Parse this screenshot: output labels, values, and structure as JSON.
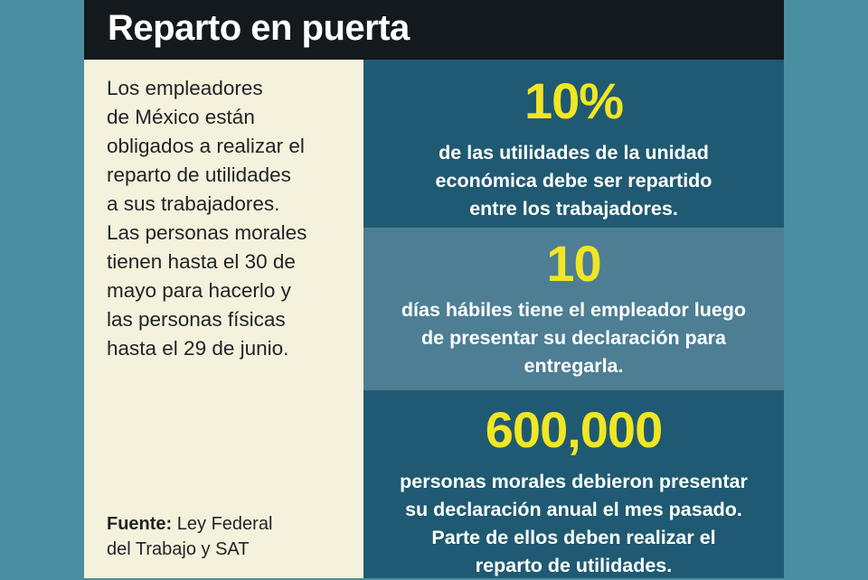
{
  "header": {
    "title": "Reparto en puerta"
  },
  "intro": {
    "lines": [
      "Los empleadores",
      "de México están",
      "obligados a realizar el",
      "reparto de utilidades",
      "a sus trabajadores.",
      "Las personas morales",
      "tienen hasta el 30 de",
      "mayo para hacerlo y",
      "las personas físicas",
      "hasta el 29 de junio."
    ]
  },
  "source": {
    "label": "Fuente:",
    "line1": " Ley Federal",
    "line2": "del Trabajo y SAT"
  },
  "stats": [
    {
      "value": "10%",
      "lines": [
        "de las utilidades de la unidad",
        "económica debe ser repartido",
        "entre los trabajadores."
      ]
    },
    {
      "value": "10",
      "lines": [
        "días hábiles tiene el empleador luego",
        "de presentar su declaración para",
        "entregarla."
      ]
    },
    {
      "value": "600,000",
      "lines": [
        "personas morales debieron presentar",
        "su declaración anual el mes pasado.",
        "Parte de ellos deben realizar el",
        "reparto de utilidades."
      ]
    }
  ],
  "colors": {
    "background": "#4a8fa1",
    "header": "#13191d",
    "panel": "#f4f1dc",
    "stat_dark": "#1f5a72",
    "stat_light": "#4d7e94",
    "accent": "#f1e623"
  }
}
